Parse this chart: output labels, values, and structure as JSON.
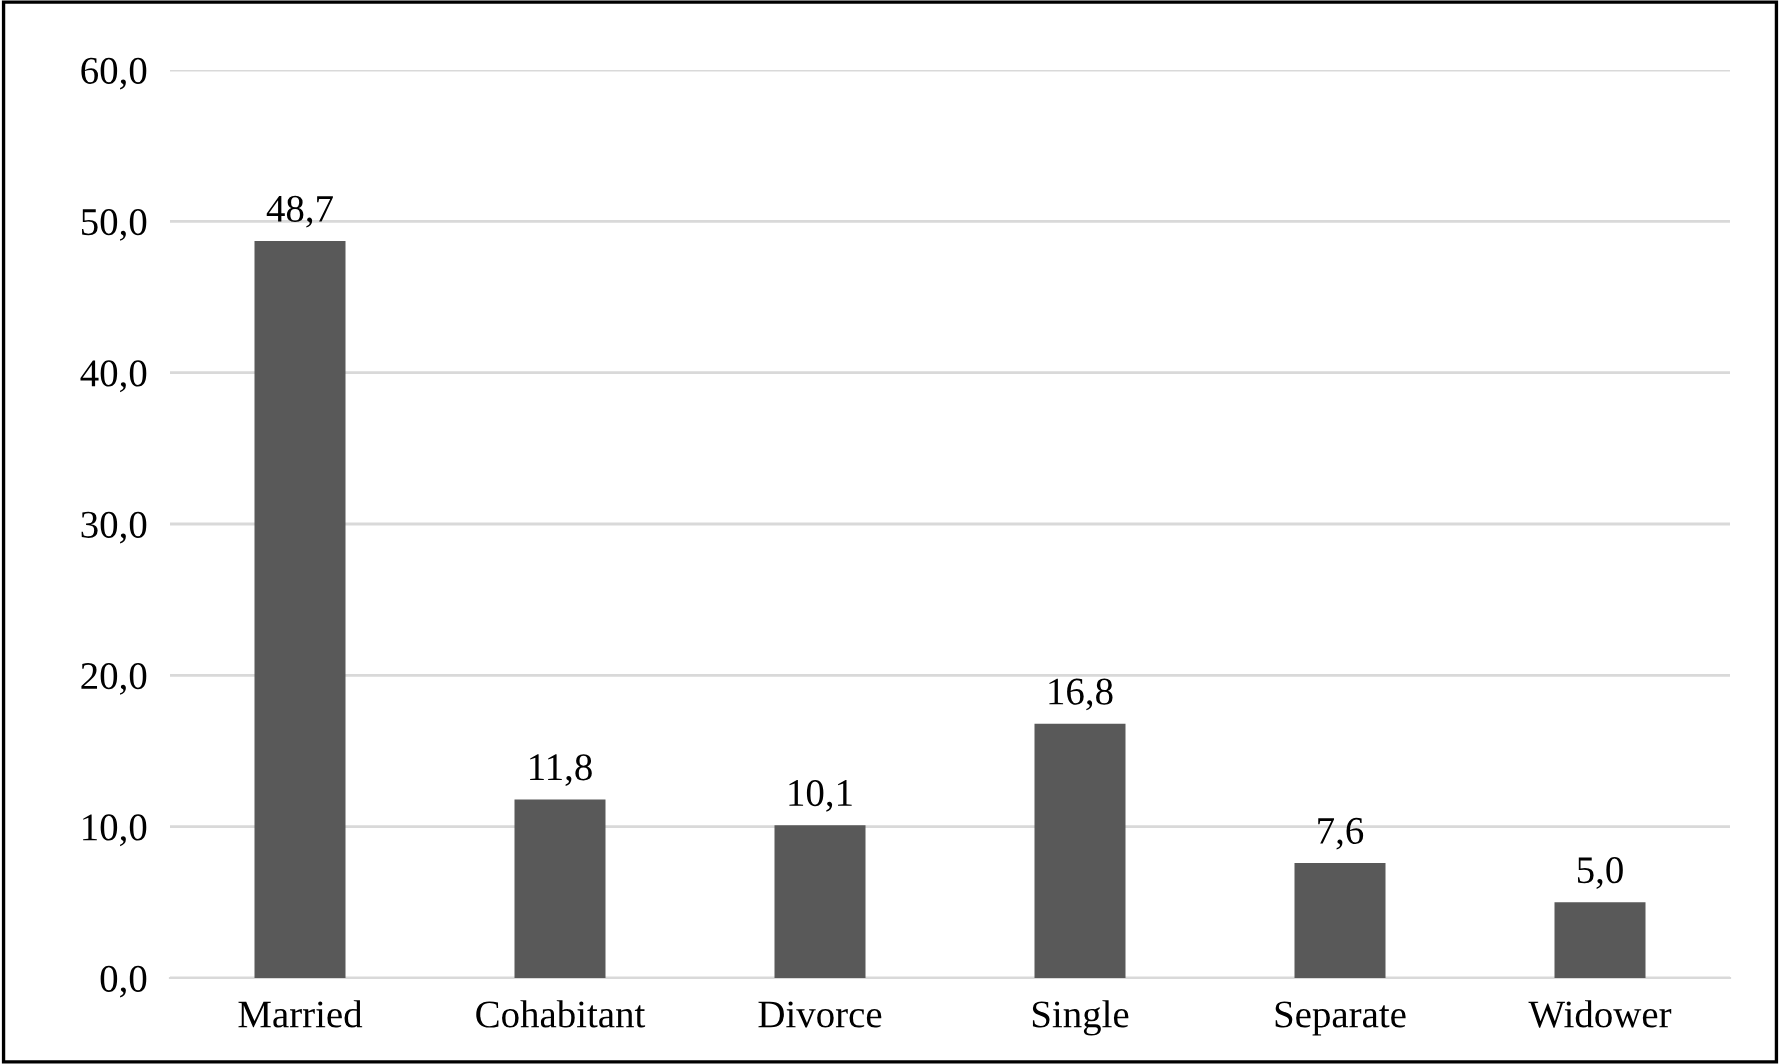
{
  "chart_data": {
    "type": "bar",
    "categories": [
      "Married",
      "Cohabitant",
      "Divorce",
      "Single",
      "Separate",
      "Widower"
    ],
    "values": [
      48.7,
      11.8,
      10.1,
      16.8,
      7.6,
      5.0
    ],
    "value_labels": [
      "48,7",
      "11,8",
      "10,1",
      "16,8",
      "7,6",
      "5,0"
    ],
    "color": "#595959",
    "ylim": [
      0,
      60
    ],
    "yticks": [
      {
        "value": 0,
        "label": "0,0"
      },
      {
        "value": 10,
        "label": "10,0"
      },
      {
        "value": 20,
        "label": "20,0"
      },
      {
        "value": 30,
        "label": "30,0"
      },
      {
        "value": 40,
        "label": "40,0"
      },
      {
        "value": 50,
        "label": "50,0"
      },
      {
        "value": 60,
        "label": "60,0"
      }
    ],
    "grid": "y"
  }
}
